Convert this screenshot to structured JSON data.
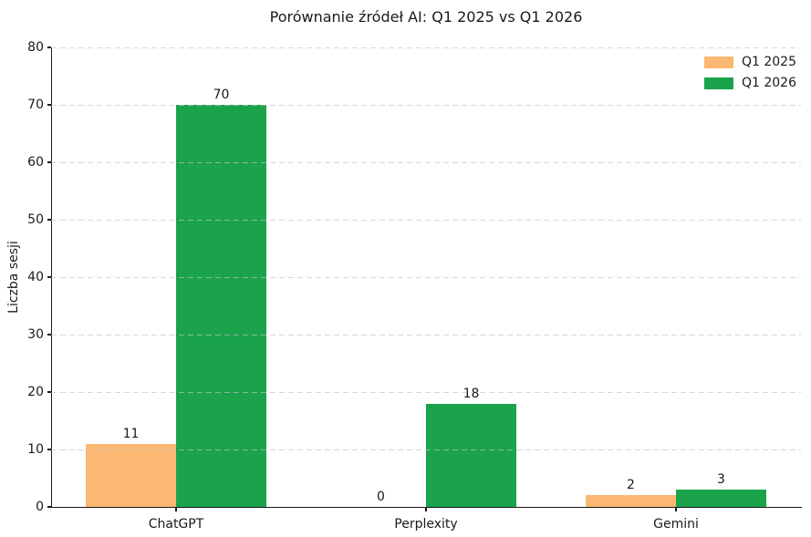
{
  "chart_data": {
    "type": "bar",
    "title": "Porównanie źródeł AI: Q1 2025 vs Q1 2026",
    "ylabel": "Liczba sesji",
    "xlabel": "",
    "categories": [
      "ChatGPT",
      "Perplexity",
      "Gemini"
    ],
    "series": [
      {
        "name": "Q1 2025",
        "color": "#FBB873",
        "values": [
          11,
          0,
          2
        ]
      },
      {
        "name": "Q1 2026",
        "color": "#1AA34A",
        "values": [
          70,
          18,
          3
        ]
      }
    ],
    "ylim": [
      0,
      80
    ],
    "yticks": [
      0,
      10,
      20,
      30,
      40,
      50,
      60,
      70,
      80
    ],
    "grid": "horizontal-dashed-over-bars",
    "legend_position": "upper-right",
    "show_value_labels": true
  },
  "colors": {
    "background": "#ffffff",
    "axis": "#1a1a1a",
    "grid": "#c3c3c3",
    "text": "#1a1a1a"
  }
}
